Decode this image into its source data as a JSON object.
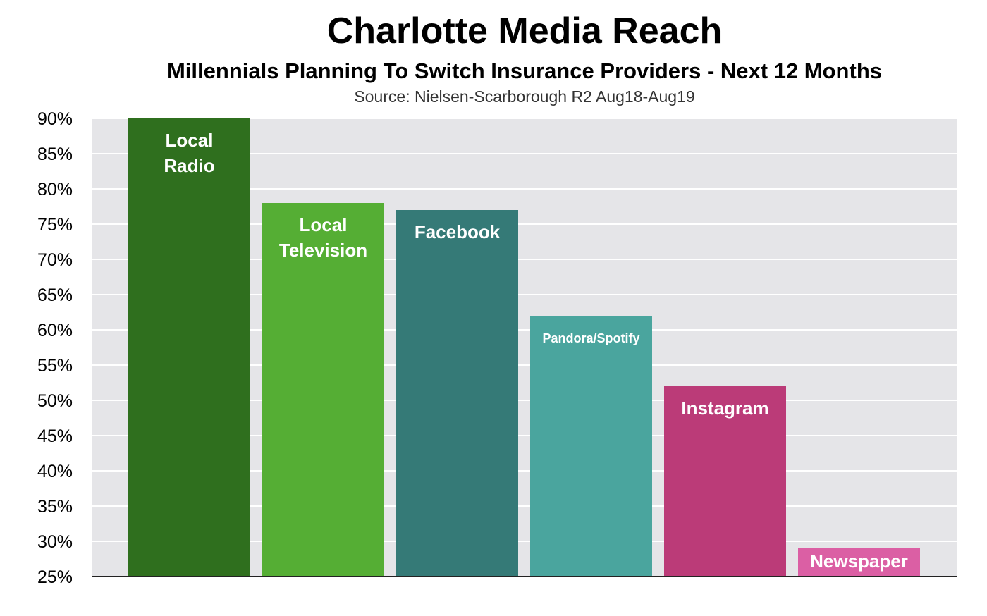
{
  "chart_data": {
    "type": "bar",
    "title": "Charlotte Media Reach",
    "subtitle": "Millennials Planning To Switch Insurance Providers - Next 12 Months",
    "source": "Source: Nielsen-Scarborough R2 Aug18-Aug19",
    "xlabel": "",
    "ylabel": "",
    "ylim": [
      25,
      90
    ],
    "ytick_step": 5,
    "ytick_labels": [
      "25%",
      "30%",
      "35%",
      "40%",
      "45%",
      "50%",
      "55%",
      "60%",
      "65%",
      "70%",
      "75%",
      "80%",
      "85%",
      "90%"
    ],
    "grid": true,
    "legend": "none",
    "categories": [
      "Local Radio",
      "Local Television",
      "Facebook",
      "Pandora/Spotify",
      "Instagram",
      "Newspaper"
    ],
    "label_lines": [
      [
        "Local",
        "Radio"
      ],
      [
        "Local",
        "Television"
      ],
      [
        "Facebook"
      ],
      [
        "Pandora/Spotify"
      ],
      [
        "Instagram"
      ],
      [
        "Newspaper"
      ]
    ],
    "values": [
      90,
      78,
      77,
      62,
      52,
      29
    ],
    "colors": [
      "#2f6f1e",
      "#55ae34",
      "#357a77",
      "#4aa59e",
      "#bb3b78",
      "#db5fa4"
    ],
    "plot_background": "#e5e5e8",
    "grid_color": "#ffffff"
  }
}
